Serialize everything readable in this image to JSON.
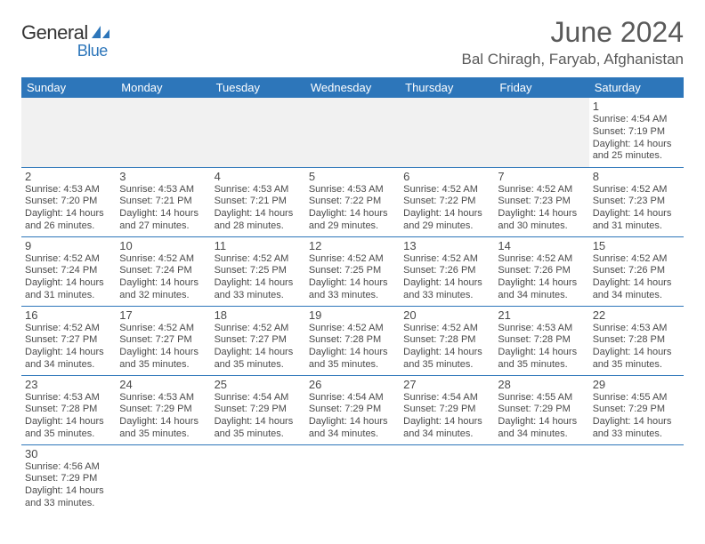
{
  "logo": {
    "text1": "General",
    "text2": "Blue"
  },
  "title": "June 2024",
  "location": "Bal Chiragh, Faryab, Afghanistan",
  "day_headers": [
    "Sunday",
    "Monday",
    "Tuesday",
    "Wednesday",
    "Thursday",
    "Friday",
    "Saturday"
  ],
  "colors": {
    "header_bg": "#2d76ba",
    "header_text": "#ffffff",
    "cell_border": "#2d76ba",
    "text": "#4a4a4a",
    "logo_blue": "#2d76ba"
  },
  "weeks": [
    [
      null,
      null,
      null,
      null,
      null,
      null,
      {
        "day": "1",
        "sunrise": "Sunrise: 4:54 AM",
        "sunset": "Sunset: 7:19 PM",
        "daylight1": "Daylight: 14 hours",
        "daylight2": "and 25 minutes."
      }
    ],
    [
      {
        "day": "2",
        "sunrise": "Sunrise: 4:53 AM",
        "sunset": "Sunset: 7:20 PM",
        "daylight1": "Daylight: 14 hours",
        "daylight2": "and 26 minutes."
      },
      {
        "day": "3",
        "sunrise": "Sunrise: 4:53 AM",
        "sunset": "Sunset: 7:21 PM",
        "daylight1": "Daylight: 14 hours",
        "daylight2": "and 27 minutes."
      },
      {
        "day": "4",
        "sunrise": "Sunrise: 4:53 AM",
        "sunset": "Sunset: 7:21 PM",
        "daylight1": "Daylight: 14 hours",
        "daylight2": "and 28 minutes."
      },
      {
        "day": "5",
        "sunrise": "Sunrise: 4:53 AM",
        "sunset": "Sunset: 7:22 PM",
        "daylight1": "Daylight: 14 hours",
        "daylight2": "and 29 minutes."
      },
      {
        "day": "6",
        "sunrise": "Sunrise: 4:52 AM",
        "sunset": "Sunset: 7:22 PM",
        "daylight1": "Daylight: 14 hours",
        "daylight2": "and 29 minutes."
      },
      {
        "day": "7",
        "sunrise": "Sunrise: 4:52 AM",
        "sunset": "Sunset: 7:23 PM",
        "daylight1": "Daylight: 14 hours",
        "daylight2": "and 30 minutes."
      },
      {
        "day": "8",
        "sunrise": "Sunrise: 4:52 AM",
        "sunset": "Sunset: 7:23 PM",
        "daylight1": "Daylight: 14 hours",
        "daylight2": "and 31 minutes."
      }
    ],
    [
      {
        "day": "9",
        "sunrise": "Sunrise: 4:52 AM",
        "sunset": "Sunset: 7:24 PM",
        "daylight1": "Daylight: 14 hours",
        "daylight2": "and 31 minutes."
      },
      {
        "day": "10",
        "sunrise": "Sunrise: 4:52 AM",
        "sunset": "Sunset: 7:24 PM",
        "daylight1": "Daylight: 14 hours",
        "daylight2": "and 32 minutes."
      },
      {
        "day": "11",
        "sunrise": "Sunrise: 4:52 AM",
        "sunset": "Sunset: 7:25 PM",
        "daylight1": "Daylight: 14 hours",
        "daylight2": "and 33 minutes."
      },
      {
        "day": "12",
        "sunrise": "Sunrise: 4:52 AM",
        "sunset": "Sunset: 7:25 PM",
        "daylight1": "Daylight: 14 hours",
        "daylight2": "and 33 minutes."
      },
      {
        "day": "13",
        "sunrise": "Sunrise: 4:52 AM",
        "sunset": "Sunset: 7:26 PM",
        "daylight1": "Daylight: 14 hours",
        "daylight2": "and 33 minutes."
      },
      {
        "day": "14",
        "sunrise": "Sunrise: 4:52 AM",
        "sunset": "Sunset: 7:26 PM",
        "daylight1": "Daylight: 14 hours",
        "daylight2": "and 34 minutes."
      },
      {
        "day": "15",
        "sunrise": "Sunrise: 4:52 AM",
        "sunset": "Sunset: 7:26 PM",
        "daylight1": "Daylight: 14 hours",
        "daylight2": "and 34 minutes."
      }
    ],
    [
      {
        "day": "16",
        "sunrise": "Sunrise: 4:52 AM",
        "sunset": "Sunset: 7:27 PM",
        "daylight1": "Daylight: 14 hours",
        "daylight2": "and 34 minutes."
      },
      {
        "day": "17",
        "sunrise": "Sunrise: 4:52 AM",
        "sunset": "Sunset: 7:27 PM",
        "daylight1": "Daylight: 14 hours",
        "daylight2": "and 35 minutes."
      },
      {
        "day": "18",
        "sunrise": "Sunrise: 4:52 AM",
        "sunset": "Sunset: 7:27 PM",
        "daylight1": "Daylight: 14 hours",
        "daylight2": "and 35 minutes."
      },
      {
        "day": "19",
        "sunrise": "Sunrise: 4:52 AM",
        "sunset": "Sunset: 7:28 PM",
        "daylight1": "Daylight: 14 hours",
        "daylight2": "and 35 minutes."
      },
      {
        "day": "20",
        "sunrise": "Sunrise: 4:52 AM",
        "sunset": "Sunset: 7:28 PM",
        "daylight1": "Daylight: 14 hours",
        "daylight2": "and 35 minutes."
      },
      {
        "day": "21",
        "sunrise": "Sunrise: 4:53 AM",
        "sunset": "Sunset: 7:28 PM",
        "daylight1": "Daylight: 14 hours",
        "daylight2": "and 35 minutes."
      },
      {
        "day": "22",
        "sunrise": "Sunrise: 4:53 AM",
        "sunset": "Sunset: 7:28 PM",
        "daylight1": "Daylight: 14 hours",
        "daylight2": "and 35 minutes."
      }
    ],
    [
      {
        "day": "23",
        "sunrise": "Sunrise: 4:53 AM",
        "sunset": "Sunset: 7:28 PM",
        "daylight1": "Daylight: 14 hours",
        "daylight2": "and 35 minutes."
      },
      {
        "day": "24",
        "sunrise": "Sunrise: 4:53 AM",
        "sunset": "Sunset: 7:29 PM",
        "daylight1": "Daylight: 14 hours",
        "daylight2": "and 35 minutes."
      },
      {
        "day": "25",
        "sunrise": "Sunrise: 4:54 AM",
        "sunset": "Sunset: 7:29 PM",
        "daylight1": "Daylight: 14 hours",
        "daylight2": "and 35 minutes."
      },
      {
        "day": "26",
        "sunrise": "Sunrise: 4:54 AM",
        "sunset": "Sunset: 7:29 PM",
        "daylight1": "Daylight: 14 hours",
        "daylight2": "and 34 minutes."
      },
      {
        "day": "27",
        "sunrise": "Sunrise: 4:54 AM",
        "sunset": "Sunset: 7:29 PM",
        "daylight1": "Daylight: 14 hours",
        "daylight2": "and 34 minutes."
      },
      {
        "day": "28",
        "sunrise": "Sunrise: 4:55 AM",
        "sunset": "Sunset: 7:29 PM",
        "daylight1": "Daylight: 14 hours",
        "daylight2": "and 34 minutes."
      },
      {
        "day": "29",
        "sunrise": "Sunrise: 4:55 AM",
        "sunset": "Sunset: 7:29 PM",
        "daylight1": "Daylight: 14 hours",
        "daylight2": "and 33 minutes."
      }
    ],
    [
      {
        "day": "30",
        "sunrise": "Sunrise: 4:56 AM",
        "sunset": "Sunset: 7:29 PM",
        "daylight1": "Daylight: 14 hours",
        "daylight2": "and 33 minutes."
      },
      null,
      null,
      null,
      null,
      null,
      null
    ]
  ]
}
